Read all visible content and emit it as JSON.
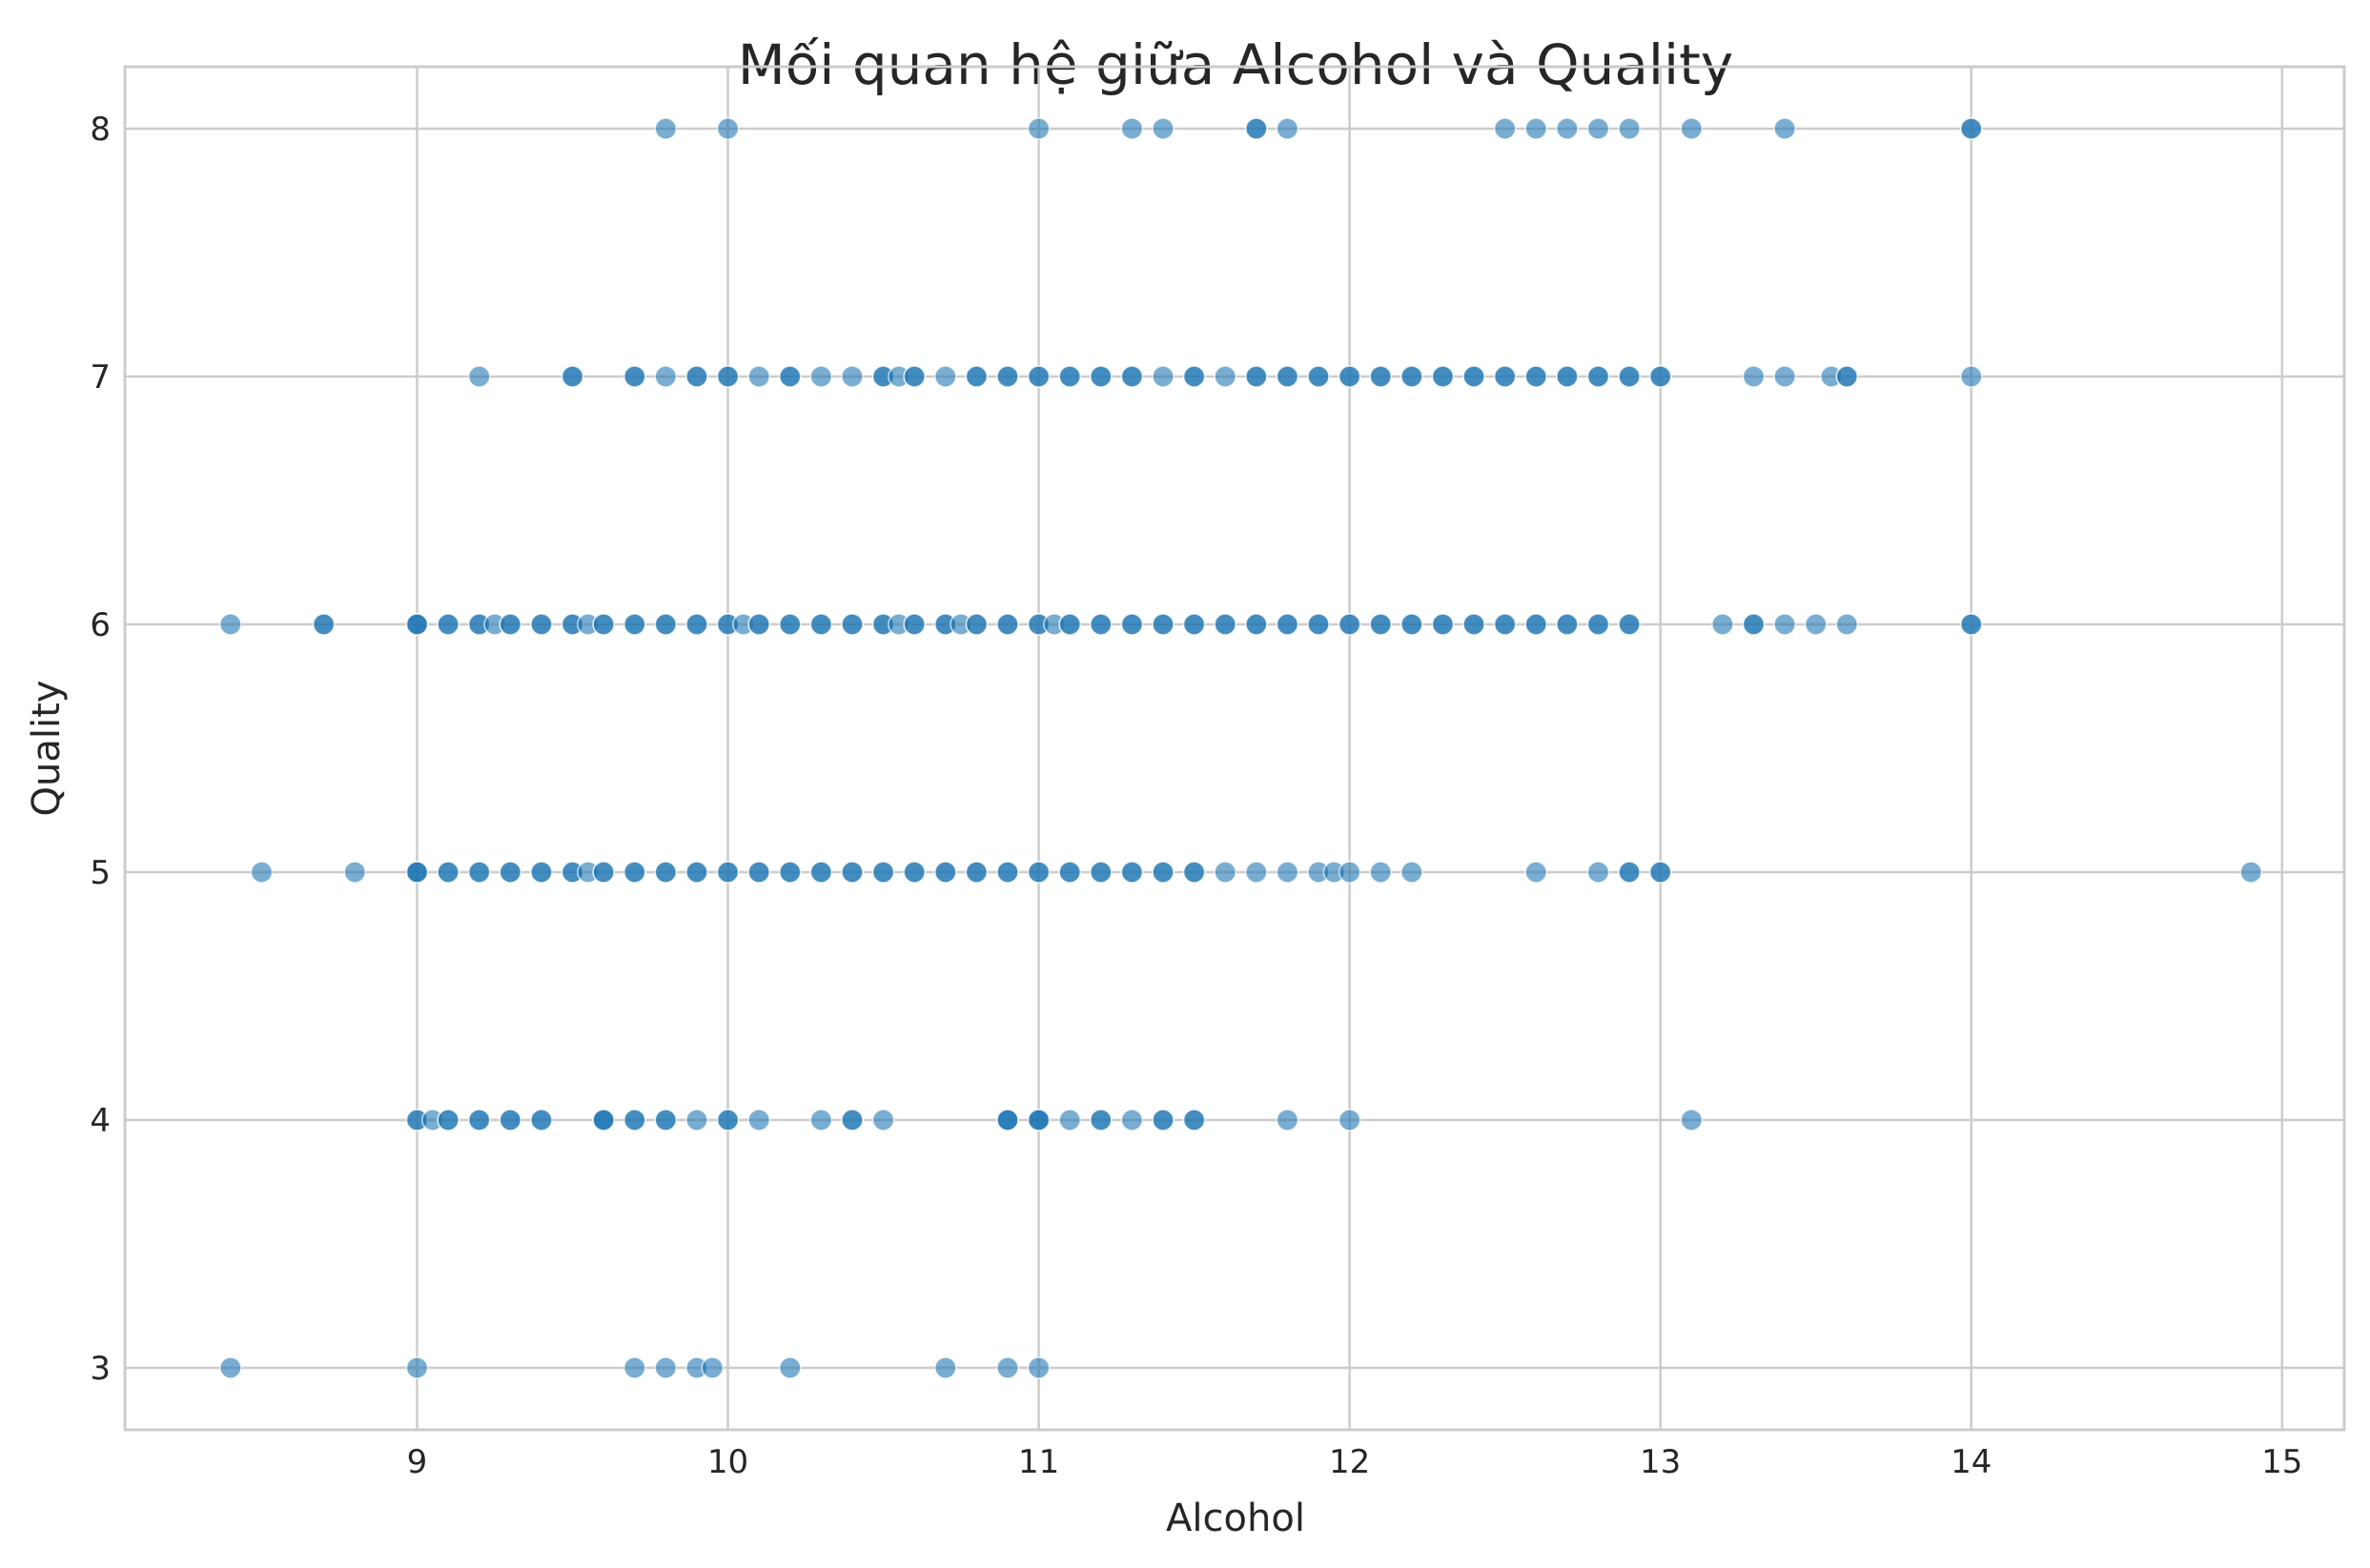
{
  "chart_data": {
    "type": "scatter",
    "title": "Mối quan hệ giữa Alcohol và Quality",
    "xlabel": "Alcohol",
    "ylabel": "Quality",
    "xlim": [
      8.06,
      15.2
    ],
    "ylim": [
      2.75,
      8.25
    ],
    "xticks": [
      9,
      10,
      11,
      12,
      13,
      14,
      15
    ],
    "yticks": [
      3,
      4,
      5,
      6,
      7,
      8
    ],
    "grid": true,
    "legend": "none",
    "point_color": "#1f77b4",
    "point_opacity": 0.6,
    "points": [
      {
        "quality": 3,
        "alcohol": [
          8.4,
          9.0,
          9.7,
          9.8,
          9.9,
          9.95,
          10.2,
          10.7,
          10.9,
          11.0
        ]
      },
      {
        "quality": 4,
        "alcohol": [
          9.0,
          9.0,
          9.05,
          9.1,
          9.1,
          9.2,
          9.2,
          9.3,
          9.3,
          9.4,
          9.4,
          9.6,
          9.6,
          9.6,
          9.7,
          9.7,
          9.8,
          9.8,
          9.9,
          10.0,
          10.0,
          10.1,
          10.3,
          10.4,
          10.4,
          10.5,
          10.9,
          10.9,
          10.9,
          11.0,
          11.0,
          11.0,
          11.1,
          11.2,
          11.2,
          11.3,
          11.4,
          11.4,
          11.5,
          11.5,
          11.8,
          12.0,
          13.1
        ]
      },
      {
        "quality": 5,
        "alcohol": [
          8.5,
          8.8,
          9.0,
          9.0,
          9.0,
          9.1,
          9.1,
          9.2,
          9.2,
          9.3,
          9.3,
          9.4,
          9.4,
          9.5,
          9.5,
          9.55,
          9.6,
          9.6,
          9.7,
          9.7,
          9.8,
          9.8,
          9.9,
          9.9,
          10.0,
          10.0,
          10.1,
          10.1,
          10.2,
          10.2,
          10.3,
          10.3,
          10.4,
          10.4,
          10.5,
          10.5,
          10.6,
          10.6,
          10.7,
          10.7,
          10.8,
          10.8,
          10.9,
          10.9,
          11.0,
          11.0,
          11.1,
          11.1,
          11.2,
          11.2,
          11.3,
          11.3,
          11.4,
          11.4,
          11.5,
          11.5,
          11.6,
          11.7,
          11.8,
          11.9,
          11.95,
          12.0,
          12.1,
          12.2,
          12.6,
          12.8,
          12.9,
          12.9,
          13.0,
          13.0,
          14.9
        ]
      },
      {
        "quality": 6,
        "alcohol": [
          8.4,
          8.7,
          8.7,
          9.0,
          9.0,
          9.0,
          9.1,
          9.1,
          9.2,
          9.2,
          9.25,
          9.3,
          9.3,
          9.4,
          9.4,
          9.5,
          9.5,
          9.55,
          9.6,
          9.6,
          9.7,
          9.7,
          9.8,
          9.8,
          9.9,
          9.9,
          10.0,
          10.0,
          10.05,
          10.1,
          10.1,
          10.2,
          10.2,
          10.3,
          10.3,
          10.4,
          10.4,
          10.5,
          10.5,
          10.55,
          10.6,
          10.6,
          10.7,
          10.7,
          10.75,
          10.8,
          10.8,
          10.9,
          10.9,
          11.0,
          11.0,
          11.05,
          11.1,
          11.1,
          11.2,
          11.2,
          11.3,
          11.3,
          11.4,
          11.4,
          11.5,
          11.5,
          11.6,
          11.6,
          11.7,
          11.7,
          11.8,
          11.8,
          11.9,
          11.9,
          12.0,
          12.0,
          12.1,
          12.1,
          12.2,
          12.2,
          12.3,
          12.3,
          12.4,
          12.4,
          12.5,
          12.5,
          12.6,
          12.6,
          12.7,
          12.7,
          12.8,
          12.8,
          12.9,
          12.9,
          13.2,
          13.3,
          13.3,
          13.4,
          13.5,
          13.6,
          14.0,
          14.0
        ]
      },
      {
        "quality": 7,
        "alcohol": [
          9.2,
          9.5,
          9.5,
          9.7,
          9.7,
          9.8,
          9.9,
          9.9,
          10.0,
          10.0,
          10.1,
          10.2,
          10.2,
          10.3,
          10.4,
          10.5,
          10.5,
          10.55,
          10.6,
          10.6,
          10.7,
          10.8,
          10.8,
          10.9,
          10.9,
          11.0,
          11.0,
          11.1,
          11.1,
          11.2,
          11.2,
          11.3,
          11.3,
          11.4,
          11.5,
          11.5,
          11.6,
          11.7,
          11.7,
          11.8,
          11.8,
          11.9,
          11.9,
          12.0,
          12.0,
          12.1,
          12.1,
          12.2,
          12.2,
          12.3,
          12.3,
          12.4,
          12.4,
          12.5,
          12.5,
          12.6,
          12.6,
          12.7,
          12.7,
          12.8,
          12.8,
          12.9,
          12.9,
          13.0,
          13.0,
          13.3,
          13.4,
          13.55,
          13.6,
          13.6,
          14.0
        ]
      },
      {
        "quality": 8,
        "alcohol": [
          9.8,
          10.0,
          11.0,
          11.3,
          11.4,
          11.7,
          11.7,
          11.8,
          12.5,
          12.6,
          12.7,
          12.8,
          12.9,
          13.1,
          13.4,
          14.0,
          14.0
        ]
      }
    ]
  }
}
